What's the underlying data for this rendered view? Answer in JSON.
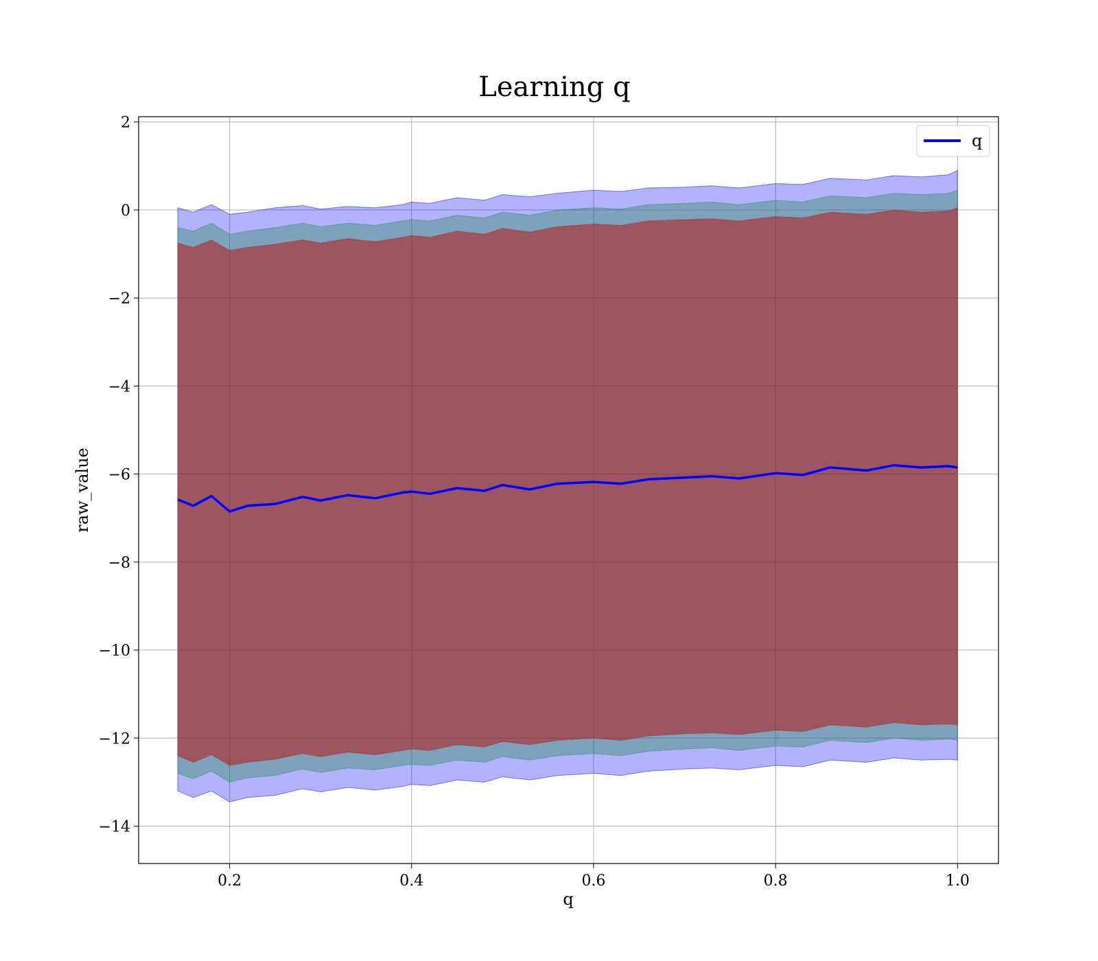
{
  "chart_data": {
    "type": "area",
    "title": "Learning q",
    "xlabel": "q",
    "ylabel": "raw_value",
    "xlim": [
      0.1,
      1.045
    ],
    "ylim": [
      -14.85,
      2.12
    ],
    "x_ticks": [
      0.2,
      0.4,
      0.6,
      0.8,
      1.0
    ],
    "x_tick_labels": [
      "0.2",
      "0.4",
      "0.6",
      "0.8",
      "1.0"
    ],
    "y_ticks": [
      2,
      0,
      -2,
      -4,
      -6,
      -8,
      -10,
      -12,
      -14
    ],
    "y_tick_labels": [
      "2",
      "0",
      "−2",
      "−4",
      "−6",
      "−8",
      "−10",
      "−12",
      "−14"
    ],
    "grid": true,
    "legend": {
      "position": "top-right",
      "entries": [
        "q"
      ]
    },
    "x": [
      0.143,
      0.16,
      0.18,
      0.2,
      0.22,
      0.25,
      0.28,
      0.3,
      0.33,
      0.36,
      0.39,
      0.4,
      0.42,
      0.45,
      0.48,
      0.5,
      0.53,
      0.56,
      0.6,
      0.63,
      0.66,
      0.7,
      0.73,
      0.76,
      0.8,
      0.83,
      0.86,
      0.9,
      0.93,
      0.96,
      0.99,
      1.0
    ],
    "series": [
      {
        "name": "q",
        "color": "#0000ff",
        "kind": "line",
        "values": [
          -6.58,
          -6.72,
          -6.5,
          -6.85,
          -6.72,
          -6.68,
          -6.52,
          -6.6,
          -6.48,
          -6.55,
          -6.42,
          -6.4,
          -6.45,
          -6.32,
          -6.38,
          -6.25,
          -6.35,
          -6.22,
          -6.18,
          -6.22,
          -6.12,
          -6.08,
          -6.05,
          -6.1,
          -5.98,
          -6.02,
          -5.85,
          -5.92,
          -5.8,
          -5.85,
          -5.82,
          -5.85
        ]
      },
      {
        "color": "#0000ff",
        "kind": "band",
        "opacity": 0.3,
        "upper": [
          0.05,
          -0.05,
          0.12,
          -0.1,
          -0.05,
          0.05,
          0.1,
          0.02,
          0.08,
          0.05,
          0.12,
          0.18,
          0.15,
          0.28,
          0.22,
          0.35,
          0.3,
          0.38,
          0.45,
          0.42,
          0.5,
          0.52,
          0.55,
          0.5,
          0.6,
          0.58,
          0.72,
          0.68,
          0.78,
          0.75,
          0.8,
          0.9
        ],
        "lower": [
          -13.2,
          -13.35,
          -13.2,
          -13.45,
          -13.35,
          -13.3,
          -13.15,
          -13.22,
          -13.12,
          -13.18,
          -13.1,
          -13.05,
          -13.08,
          -12.95,
          -13.0,
          -12.88,
          -12.95,
          -12.85,
          -12.8,
          -12.85,
          -12.75,
          -12.7,
          -12.68,
          -12.72,
          -12.62,
          -12.65,
          -12.5,
          -12.55,
          -12.45,
          -12.5,
          -12.48,
          -12.5
        ]
      },
      {
        "color": "#2e8b57",
        "kind": "band",
        "opacity": 0.4,
        "upper": [
          -0.4,
          -0.48,
          -0.3,
          -0.55,
          -0.48,
          -0.4,
          -0.3,
          -0.38,
          -0.3,
          -0.35,
          -0.25,
          -0.22,
          -0.25,
          -0.12,
          -0.18,
          -0.05,
          -0.12,
          0.0,
          0.05,
          0.02,
          0.12,
          0.15,
          0.18,
          0.12,
          0.22,
          0.18,
          0.32,
          0.28,
          0.38,
          0.35,
          0.38,
          0.45
        ],
        "lower": [
          -12.8,
          -12.92,
          -12.75,
          -13.0,
          -12.9,
          -12.85,
          -12.7,
          -12.78,
          -12.68,
          -12.72,
          -12.62,
          -12.6,
          -12.62,
          -12.5,
          -12.55,
          -12.42,
          -12.5,
          -12.4,
          -12.35,
          -12.4,
          -12.3,
          -12.25,
          -12.22,
          -12.28,
          -12.18,
          -12.2,
          -12.05,
          -12.1,
          -12.0,
          -12.05,
          -12.02,
          -12.05
        ]
      },
      {
        "color": "#b22222",
        "kind": "band",
        "opacity": 0.6,
        "upper": [
          -0.75,
          -0.85,
          -0.68,
          -0.92,
          -0.85,
          -0.78,
          -0.68,
          -0.75,
          -0.65,
          -0.72,
          -0.62,
          -0.58,
          -0.62,
          -0.48,
          -0.55,
          -0.42,
          -0.5,
          -0.38,
          -0.32,
          -0.35,
          -0.25,
          -0.22,
          -0.2,
          -0.25,
          -0.15,
          -0.18,
          -0.05,
          -0.1,
          0.0,
          -0.05,
          -0.02,
          0.05
        ],
        "lower": [
          -12.4,
          -12.55,
          -12.38,
          -12.62,
          -12.55,
          -12.48,
          -12.35,
          -12.42,
          -12.32,
          -12.38,
          -12.28,
          -12.25,
          -12.28,
          -12.15,
          -12.2,
          -12.08,
          -12.15,
          -12.05,
          -12.0,
          -12.05,
          -11.95,
          -11.9,
          -11.88,
          -11.92,
          -11.82,
          -11.85,
          -11.7,
          -11.75,
          -11.65,
          -11.7,
          -11.68,
          -11.7
        ]
      }
    ]
  }
}
